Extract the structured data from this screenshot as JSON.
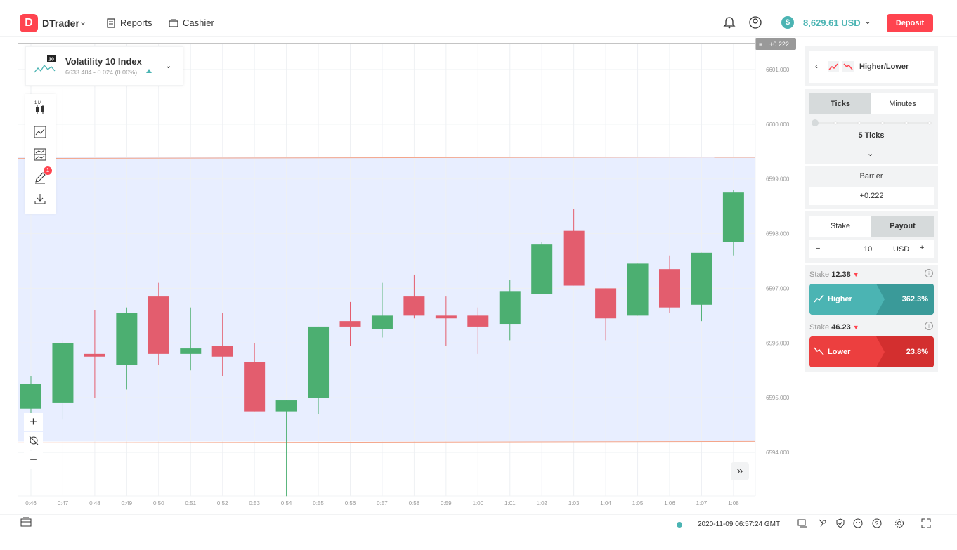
{
  "header": {
    "app_name": "DTrader",
    "nav": [
      {
        "label": "Reports",
        "icon": "reports-icon"
      },
      {
        "label": "Cashier",
        "icon": "cashier-icon"
      }
    ],
    "balance": "8,629.61 USD",
    "deposit_label": "Deposit"
  },
  "symbol": {
    "name": "Volatility 10 Index",
    "price_line": "6633.404 - 0.024 (0.00%)",
    "icon_badge": "10"
  },
  "toolbar": {
    "interval_label": "1 M",
    "drawing_badge": "1"
  },
  "chart": {
    "barrier_tag": "+0.222",
    "y_ticks": [
      "6601.000",
      "6600.000",
      "6599.000",
      "6598.000",
      "6597.000",
      "6596.000",
      "6595.000",
      "6594.000"
    ],
    "x_ticks": [
      "0:46",
      "0:47",
      "0:48",
      "0:49",
      "0:50",
      "0:51",
      "0:52",
      "0:53",
      "0:54",
      "0:55",
      "0:56",
      "0:57",
      "0:58",
      "0:59",
      "1:00",
      "1:01",
      "1:02",
      "1:03",
      "1:04",
      "1:05",
      "1:06",
      "1:07",
      "1:08"
    ],
    "band": {
      "upper": 6599.4,
      "lower": 6594.2
    },
    "candles": [
      {
        "o": 6594.8,
        "c": 6595.25,
        "h": 6595.4,
        "l": 6594.7
      },
      {
        "o": 6594.9,
        "c": 6596.0,
        "h": 6596.05,
        "l": 6594.6
      },
      {
        "o": 6595.8,
        "c": 6595.75,
        "h": 6596.6,
        "l": 6595.0
      },
      {
        "o": 6595.6,
        "c": 6596.55,
        "h": 6596.65,
        "l": 6595.15
      },
      {
        "o": 6596.85,
        "c": 6595.8,
        "h": 6597.1,
        "l": 6595.6
      },
      {
        "o": 6595.8,
        "c": 6595.9,
        "h": 6596.65,
        "l": 6595.5
      },
      {
        "o": 6595.95,
        "c": 6595.75,
        "h": 6596.55,
        "l": 6595.4
      },
      {
        "o": 6595.65,
        "c": 6594.75,
        "h": 6596.0,
        "l": 6594.75
      },
      {
        "o": 6594.75,
        "c": 6594.95,
        "h": 6594.95,
        "l": 6593.2
      },
      {
        "o": 6595.0,
        "c": 6596.3,
        "h": 6596.3,
        "l": 6594.7
      },
      {
        "o": 6596.4,
        "c": 6596.3,
        "h": 6596.75,
        "l": 6595.95
      },
      {
        "o": 6596.25,
        "c": 6596.5,
        "h": 6597.1,
        "l": 6596.1
      },
      {
        "o": 6596.85,
        "c": 6596.5,
        "h": 6597.25,
        "l": 6596.45
      },
      {
        "o": 6596.5,
        "c": 6596.45,
        "h": 6596.85,
        "l": 6595.95
      },
      {
        "o": 6596.5,
        "c": 6596.3,
        "h": 6596.65,
        "l": 6595.8
      },
      {
        "o": 6596.35,
        "c": 6596.95,
        "h": 6597.15,
        "l": 6596.05
      },
      {
        "o": 6596.9,
        "c": 6597.8,
        "h": 6597.85,
        "l": 6596.9
      },
      {
        "o": 6598.05,
        "c": 6597.05,
        "h": 6598.45,
        "l": 6597.05
      },
      {
        "o": 6597.0,
        "c": 6596.45,
        "h": 6597.0,
        "l": 6596.05
      },
      {
        "o": 6596.5,
        "c": 6597.45,
        "h": 6597.45,
        "l": 6596.5
      },
      {
        "o": 6597.35,
        "c": 6596.65,
        "h": 6597.6,
        "l": 6596.55
      },
      {
        "o": 6596.7,
        "c": 6597.65,
        "h": 6597.65,
        "l": 6596.4
      },
      {
        "o": 6597.85,
        "c": 6598.75,
        "h": 6598.8,
        "l": 6597.6
      }
    ]
  },
  "trade": {
    "type_label": "Higher/Lower",
    "duration_tabs": [
      "Ticks",
      "Minutes"
    ],
    "duration_value": "5 Ticks",
    "barrier_label": "Barrier",
    "barrier_value": "+0.222",
    "basis_tabs": [
      "Stake",
      "Payout"
    ],
    "amount": "10",
    "currency": "USD",
    "higher": {
      "stake_label": "Stake",
      "stake_value": "12.38",
      "label": "Higher",
      "pct": "362.3%"
    },
    "lower": {
      "stake_label": "Stake",
      "stake_value": "46.23",
      "label": "Lower",
      "pct": "23.8%"
    }
  },
  "footer": {
    "timestamp": "2020-11-09 06:57:24 GMT"
  },
  "colors": {
    "accent_red": "#ff444f",
    "teal": "#4bb4b3",
    "candle_up": "#4caf71",
    "candle_down": "#e35d6e",
    "band_fill": "#e8eeff"
  }
}
